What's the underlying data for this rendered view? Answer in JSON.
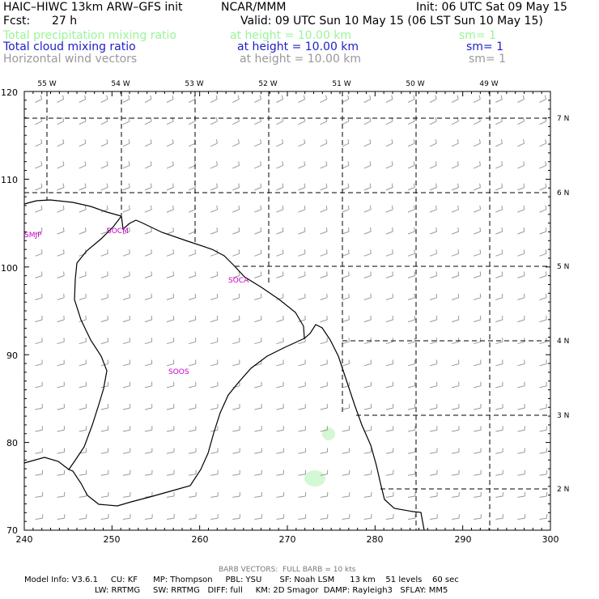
{
  "header": {
    "model": "HAIC–HIWC 13km ARW–GFS init",
    "org": "NCAR/MMM",
    "init": "Init: 06 UTC Sat 09 May 15",
    "fcst_label": "Fcst:",
    "fcst_value": "27 h",
    "valid": "Valid: 09 UTC Sun 10 May 15 (06 LST Sun 10 May 15)",
    "fields": [
      {
        "name": "Total precipitation mixing ratio",
        "height": "at height = 10.00 km",
        "sm": "sm= 1",
        "color": "#98f598"
      },
      {
        "name": "Total cloud mixing ratio",
        "height": "at height = 10.00 km",
        "sm": "sm= 1",
        "color": "#1e1ec8"
      },
      {
        "name": "Horizontal wind vectors",
        "height": "at height = 10.00 km",
        "sm": "sm= 1",
        "color": "#999999"
      }
    ]
  },
  "map": {
    "top_lon_labels": [
      "55 W",
      "54 W",
      "53 W",
      "52 W",
      "51 W",
      "50 W",
      "49 W"
    ],
    "right_lat_labels": [
      "7 N",
      "6 N",
      "5 N",
      "4 N",
      "3 N",
      "2 N"
    ],
    "y_ticks": [
      "120",
      "110",
      "100",
      "90",
      "80",
      "70"
    ],
    "x_ticks": [
      "240",
      "250",
      "260",
      "270",
      "280",
      "290",
      "300"
    ],
    "station_labels": [
      "SMJP",
      "SOCM",
      "SOCA",
      "SOOS"
    ],
    "station_color": "#c800c8",
    "precip_color": "#d4f7d4",
    "barb_color": "#9a9a9a"
  },
  "footer": {
    "barb_note": "BARB VECTORS:  FULL BARB = 10 kts",
    "line1": "Model Info: V3.6.1     CU: KF      MP: Thompson     PBL: YSU       SF: Noah LSM      13 km    51 levels    60 sec",
    "line2": "LW: RRTMG     SW: RRTMG   DIFF: full     KM: 2D Smagor  DAMP: Rayleigh3   SFLAY: MM5"
  }
}
